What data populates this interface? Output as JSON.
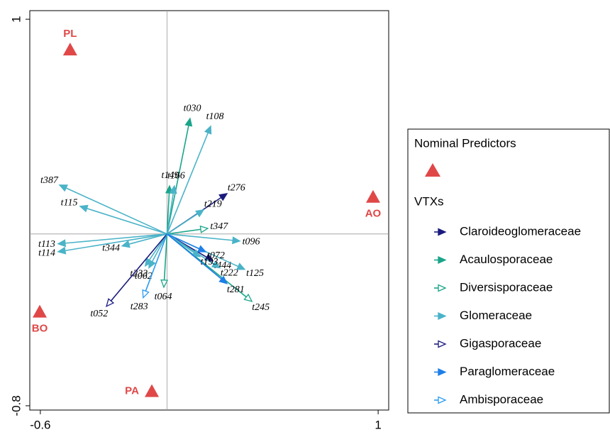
{
  "chart_data": {
    "type": "biplot",
    "xlim": [
      -0.65,
      1.05
    ],
    "ylim": [
      -0.82,
      1.04
    ],
    "xticks": [
      -0.6,
      1.0
    ],
    "yticks": [
      -0.8,
      1.0
    ],
    "zero_lines": true,
    "legend_titles": [
      "Nominal Predictors",
      "VTXs"
    ],
    "points": {
      "labels": [
        "PL",
        "AO",
        "BO",
        "PA"
      ],
      "x": [
        -0.459,
        0.976,
        -0.603,
        -0.072
      ],
      "y": [
        0.858,
        0.172,
        -0.363,
        -0.733
      ],
      "color": "#e04848"
    },
    "series": [
      {
        "name": "Claroideoglomeraceae",
        "color": "#1b1b7d",
        "open": false,
        "labels": [
          "t276",
          "t444"
        ],
        "x": [
          0.284,
          0.217
        ],
        "y": [
          0.188,
          -0.125
        ]
      },
      {
        "name": "Acaulosporaceae",
        "color": "#1aa58a",
        "open": false,
        "labels": [
          "t030",
          "t149"
        ],
        "x": [
          0.109,
          0.012
        ],
        "y": [
          0.538,
          0.224
        ]
      },
      {
        "name": "Diversisporaceae",
        "color": "#1aa58a",
        "open": true,
        "labels": [
          "t347",
          "t245",
          "t064"
        ],
        "x": [
          0.193,
          0.402,
          -0.015
        ],
        "y": [
          0.026,
          -0.314,
          -0.248
        ]
      },
      {
        "name": "Glomeraceae",
        "color": "#4ab3c8",
        "open": false,
        "labels": [
          "t108",
          "t166",
          "t387",
          "t115",
          "t219",
          "t096",
          "t222",
          "t125",
          "t193",
          "t113",
          "t114",
          "t344",
          "t233",
          "t062"
        ],
        "x": [
          0.207,
          0.035,
          -0.509,
          -0.412,
          0.173,
          0.345,
          0.25,
          0.368,
          0.156,
          -0.516,
          -0.516,
          -0.213,
          -0.103,
          -0.086
        ],
        "y": [
          0.502,
          0.224,
          0.228,
          0.129,
          0.112,
          -0.033,
          -0.158,
          -0.165,
          -0.106,
          -0.046,
          -0.083,
          -0.056,
          -0.149,
          -0.158
        ]
      },
      {
        "name": "Gigasporaceae",
        "color": "#1b1b7d",
        "open": true,
        "labels": [
          "t052"
        ],
        "x": [
          -0.287
        ],
        "y": [
          -0.337
        ]
      },
      {
        "name": "Paraglomeraceae",
        "color": "#1e7fe8",
        "open": false,
        "labels": [
          "t072",
          "t281"
        ],
        "x": [
          0.183,
          0.284
        ],
        "y": [
          -0.083,
          -0.231
        ]
      },
      {
        "name": "Ambisporaceae",
        "color": "#2b9bf0",
        "open": true,
        "labels": [
          "t283"
        ],
        "x": [
          -0.113
        ],
        "y": [
          -0.297
        ]
      }
    ]
  }
}
